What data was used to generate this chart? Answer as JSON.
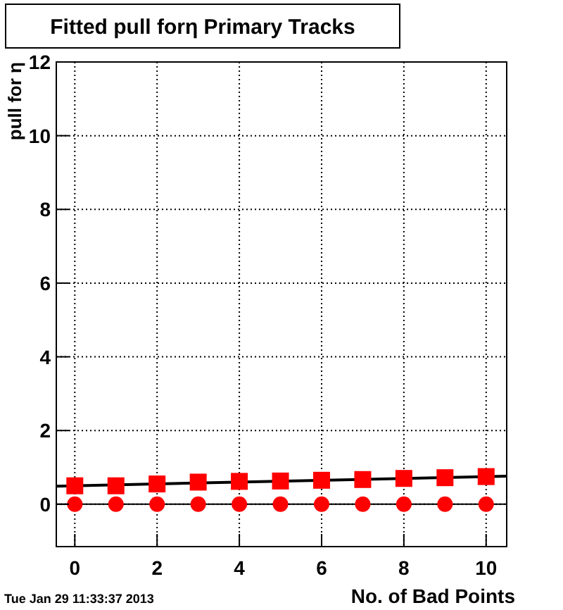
{
  "chart_data": {
    "type": "scatter",
    "title": "Fitted pull forη Primary Tracks",
    "xlabel": "No. of Bad Points",
    "ylabel": "pull for η",
    "annotations": [
      "Tue Jan 29 11:33:37 2013"
    ],
    "series": [
      {
        "type": "line",
        "color": "#000000",
        "x": [
          -0.45,
          10.5
        ],
        "values": [
          0.49,
          0.76
        ]
      },
      {
        "color": "#ff0000",
        "marker": "square",
        "x": [
          0,
          1,
          2,
          3,
          4,
          5,
          6,
          7,
          8,
          9,
          10
        ],
        "values": [
          0.5,
          0.5,
          0.55,
          0.6,
          0.62,
          0.63,
          0.65,
          0.67,
          0.7,
          0.72,
          0.75
        ]
      },
      {
        "color": "#ff0000",
        "marker": "circle",
        "x": [
          0,
          1,
          2,
          3,
          4,
          5,
          6,
          7,
          8,
          9,
          10
        ],
        "values": [
          0,
          0,
          0,
          0,
          0,
          0,
          0,
          0,
          0,
          0,
          0
        ]
      }
    ],
    "ref_lines": [
      {
        "axis": "y",
        "value": 0,
        "color": "#000000"
      }
    ],
    "xlim": [
      -0.45,
      10.5
    ],
    "xticks": [
      0,
      2,
      4,
      6,
      8,
      10
    ],
    "ylim": [
      -1.15,
      12
    ],
    "yticks": [
      0,
      2,
      4,
      6,
      8,
      10,
      12
    ],
    "grid": true
  }
}
